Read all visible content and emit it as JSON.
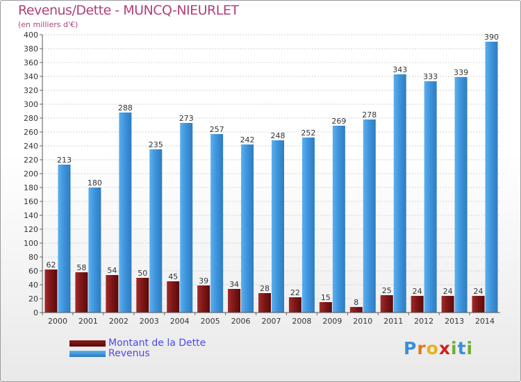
{
  "chart_data": {
    "type": "bar",
    "title": "Revenus/Dette - MUNCQ-NIEURLET",
    "subtitle": "(en milliers d'€)",
    "categories": [
      "2000",
      "2001",
      "2002",
      "2003",
      "2004",
      "2005",
      "2006",
      "2007",
      "2008",
      "2009",
      "2010",
      "2011",
      "2012",
      "2013",
      "2014"
    ],
    "series": [
      {
        "name": "Montant de la Dette",
        "color": "#7a1212",
        "values": [
          62,
          58,
          54,
          50,
          45,
          39,
          34,
          28,
          22,
          15,
          8,
          25,
          24,
          24,
          24
        ]
      },
      {
        "name": "Revenus",
        "color": "#3d8fd6",
        "values": [
          213,
          180,
          288,
          235,
          273,
          257,
          242,
          248,
          252,
          269,
          278,
          343,
          333,
          339,
          390
        ]
      }
    ],
    "ylim": [
      0,
      400
    ],
    "yticks": [
      0,
      20,
      40,
      60,
      80,
      100,
      120,
      140,
      160,
      180,
      200,
      220,
      240,
      260,
      280,
      300,
      320,
      340,
      360,
      380,
      400
    ],
    "grid": true,
    "data_labels": true,
    "legend_position": "bottom-left"
  },
  "logo": {
    "text": "Proxiti",
    "letters": [
      "P",
      "r",
      "o",
      "x",
      "i",
      "t",
      "i"
    ]
  }
}
